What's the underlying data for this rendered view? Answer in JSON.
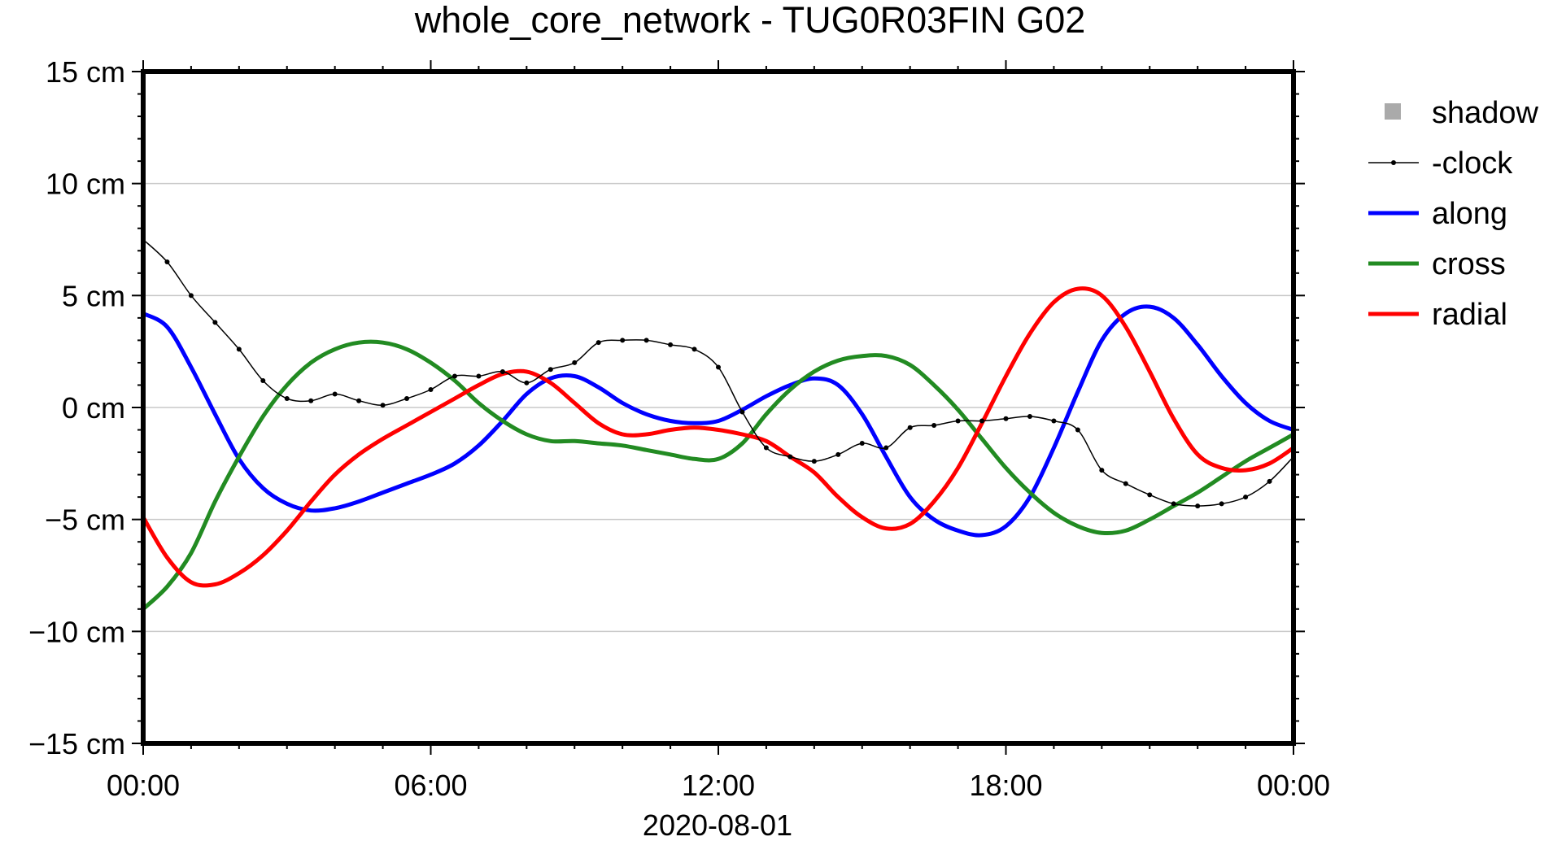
{
  "chart_data": {
    "type": "line",
    "title": "whole_core_network - TUG0R03FIN G02",
    "xlabel": "2020-08-01",
    "ylabel": "",
    "x_unit": "hours",
    "xlim": [
      0,
      24
    ],
    "ylim": [
      -15,
      15
    ],
    "x_tick_labels": [
      "00:00",
      "06:00",
      "12:00",
      "18:00",
      "00:00"
    ],
    "y_tick_labels": [
      "15 cm",
      "10 cm",
      "5 cm",
      "0 cm",
      "−5 cm",
      "−10 cm",
      "−15 cm"
    ],
    "grid": "horizontal",
    "legend_position": "right",
    "series": [
      {
        "name": "shadow",
        "color": "#aaaaaa",
        "style": "square",
        "points": []
      },
      {
        "name": "-clock",
        "color": "#000000",
        "style": "dots",
        "points": [
          [
            0,
            7.5
          ],
          [
            0.5,
            6.5
          ],
          [
            1,
            5
          ],
          [
            1.5,
            3.8
          ],
          [
            2,
            2.6
          ],
          [
            2.5,
            1.2
          ],
          [
            3,
            0.4
          ],
          [
            3.5,
            0.3
          ],
          [
            4,
            0.6
          ],
          [
            4.5,
            0.3
          ],
          [
            5,
            0.1
          ],
          [
            5.5,
            0.4
          ],
          [
            6,
            0.8
          ],
          [
            6.5,
            1.4
          ],
          [
            7,
            1.4
          ],
          [
            7.5,
            1.6
          ],
          [
            8,
            1.1
          ],
          [
            8.5,
            1.7
          ],
          [
            9,
            2.0
          ],
          [
            9.5,
            2.9
          ],
          [
            10,
            3.0
          ],
          [
            10.5,
            3.0
          ],
          [
            11,
            2.8
          ],
          [
            11.5,
            2.6
          ],
          [
            12,
            1.8
          ],
          [
            12.5,
            -0.2
          ],
          [
            13,
            -1.8
          ],
          [
            13.5,
            -2.2
          ],
          [
            14,
            -2.4
          ],
          [
            14.5,
            -2.1
          ],
          [
            15,
            -1.6
          ],
          [
            15.5,
            -1.8
          ],
          [
            16,
            -0.9
          ],
          [
            16.5,
            -0.8
          ],
          [
            17,
            -0.6
          ],
          [
            17.5,
            -0.6
          ],
          [
            18,
            -0.5
          ],
          [
            18.5,
            -0.4
          ],
          [
            19,
            -0.6
          ],
          [
            19.5,
            -1.0
          ],
          [
            20,
            -2.8
          ],
          [
            20.5,
            -3.4
          ],
          [
            21,
            -3.9
          ],
          [
            21.5,
            -4.3
          ],
          [
            22,
            -4.4
          ],
          [
            22.5,
            -4.3
          ],
          [
            23,
            -4.0
          ],
          [
            23.5,
            -3.3
          ],
          [
            24,
            -2.2
          ]
        ]
      },
      {
        "name": "along",
        "color": "#0000ff",
        "style": "line",
        "points": [
          [
            0,
            4.2
          ],
          [
            0.5,
            3.6
          ],
          [
            1,
            1.8
          ],
          [
            1.5,
            -0.3
          ],
          [
            2,
            -2.3
          ],
          [
            2.5,
            -3.6
          ],
          [
            3,
            -4.3
          ],
          [
            3.5,
            -4.6
          ],
          [
            4,
            -4.5
          ],
          [
            4.5,
            -4.2
          ],
          [
            5,
            -3.8
          ],
          [
            5.5,
            -3.4
          ],
          [
            6,
            -3.0
          ],
          [
            6.5,
            -2.5
          ],
          [
            7,
            -1.7
          ],
          [
            7.5,
            -0.6
          ],
          [
            8,
            0.6
          ],
          [
            8.5,
            1.3
          ],
          [
            9,
            1.4
          ],
          [
            9.5,
            0.9
          ],
          [
            10,
            0.2
          ],
          [
            10.5,
            -0.3
          ],
          [
            11,
            -0.6
          ],
          [
            11.5,
            -0.7
          ],
          [
            12,
            -0.6
          ],
          [
            12.5,
            -0.1
          ],
          [
            13,
            0.5
          ],
          [
            13.5,
            1.0
          ],
          [
            14,
            1.3
          ],
          [
            14.5,
            1.0
          ],
          [
            15,
            -0.3
          ],
          [
            15.5,
            -2.2
          ],
          [
            16,
            -4.0
          ],
          [
            16.5,
            -5.0
          ],
          [
            17,
            -5.5
          ],
          [
            17.5,
            -5.7
          ],
          [
            18,
            -5.3
          ],
          [
            18.5,
            -4.0
          ],
          [
            19,
            -1.8
          ],
          [
            19.5,
            0.7
          ],
          [
            20,
            3.0
          ],
          [
            20.5,
            4.2
          ],
          [
            21,
            4.5
          ],
          [
            21.5,
            4.0
          ],
          [
            22,
            2.8
          ],
          [
            22.5,
            1.4
          ],
          [
            23,
            0.2
          ],
          [
            23.5,
            -0.6
          ],
          [
            24,
            -1.0
          ]
        ]
      },
      {
        "name": "cross",
        "color": "#228b22",
        "style": "line",
        "points": [
          [
            0,
            -9.0
          ],
          [
            0.5,
            -8.0
          ],
          [
            1,
            -6.5
          ],
          [
            1.5,
            -4.2
          ],
          [
            2,
            -2.2
          ],
          [
            2.5,
            -0.4
          ],
          [
            3,
            1.0
          ],
          [
            3.5,
            2.0
          ],
          [
            4,
            2.6
          ],
          [
            4.5,
            2.9
          ],
          [
            5,
            2.9
          ],
          [
            5.5,
            2.6
          ],
          [
            6,
            2.0
          ],
          [
            6.5,
            1.2
          ],
          [
            7,
            0.2
          ],
          [
            7.5,
            -0.6
          ],
          [
            8,
            -1.2
          ],
          [
            8.5,
            -1.5
          ],
          [
            9,
            -1.5
          ],
          [
            9.5,
            -1.6
          ],
          [
            10,
            -1.7
          ],
          [
            10.5,
            -1.9
          ],
          [
            11,
            -2.1
          ],
          [
            11.5,
            -2.3
          ],
          [
            12,
            -2.3
          ],
          [
            12.5,
            -1.6
          ],
          [
            13,
            -0.3
          ],
          [
            13.5,
            0.8
          ],
          [
            14,
            1.6
          ],
          [
            14.5,
            2.1
          ],
          [
            15,
            2.3
          ],
          [
            15.5,
            2.3
          ],
          [
            16,
            1.9
          ],
          [
            16.5,
            1.0
          ],
          [
            17,
            -0.1
          ],
          [
            17.5,
            -1.4
          ],
          [
            18,
            -2.7
          ],
          [
            18.5,
            -3.8
          ],
          [
            19,
            -4.7
          ],
          [
            19.5,
            -5.3
          ],
          [
            20,
            -5.6
          ],
          [
            20.5,
            -5.5
          ],
          [
            21,
            -5.0
          ],
          [
            21.5,
            -4.4
          ],
          [
            22,
            -3.8
          ],
          [
            22.5,
            -3.1
          ],
          [
            23,
            -2.4
          ],
          [
            23.5,
            -1.8
          ],
          [
            24,
            -1.2
          ]
        ]
      },
      {
        "name": "radial",
        "color": "#ff0000",
        "style": "line",
        "points": [
          [
            0,
            -4.9
          ],
          [
            0.5,
            -6.7
          ],
          [
            1,
            -7.8
          ],
          [
            1.5,
            -7.9
          ],
          [
            2,
            -7.4
          ],
          [
            2.5,
            -6.6
          ],
          [
            3,
            -5.5
          ],
          [
            3.5,
            -4.2
          ],
          [
            4,
            -3.0
          ],
          [
            4.5,
            -2.1
          ],
          [
            5,
            -1.4
          ],
          [
            5.5,
            -0.8
          ],
          [
            6,
            -0.2
          ],
          [
            6.5,
            0.4
          ],
          [
            7,
            1.0
          ],
          [
            7.5,
            1.5
          ],
          [
            8,
            1.6
          ],
          [
            8.5,
            1.1
          ],
          [
            9,
            0.2
          ],
          [
            9.5,
            -0.7
          ],
          [
            10,
            -1.2
          ],
          [
            10.5,
            -1.2
          ],
          [
            11,
            -1.0
          ],
          [
            11.5,
            -0.9
          ],
          [
            12,
            -1.0
          ],
          [
            12.5,
            -1.2
          ],
          [
            13,
            -1.5
          ],
          [
            13.5,
            -2.2
          ],
          [
            14,
            -2.9
          ],
          [
            14.5,
            -4.0
          ],
          [
            15,
            -4.9
          ],
          [
            15.5,
            -5.4
          ],
          [
            16,
            -5.2
          ],
          [
            16.5,
            -4.2
          ],
          [
            17,
            -2.7
          ],
          [
            17.5,
            -0.7
          ],
          [
            18,
            1.4
          ],
          [
            18.5,
            3.3
          ],
          [
            19,
            4.7
          ],
          [
            19.5,
            5.3
          ],
          [
            20,
            5.0
          ],
          [
            20.5,
            3.6
          ],
          [
            21,
            1.6
          ],
          [
            21.5,
            -0.5
          ],
          [
            22,
            -2.1
          ],
          [
            22.5,
            -2.7
          ],
          [
            23,
            -2.8
          ],
          [
            23.5,
            -2.5
          ],
          [
            24,
            -1.8
          ]
        ]
      }
    ]
  }
}
